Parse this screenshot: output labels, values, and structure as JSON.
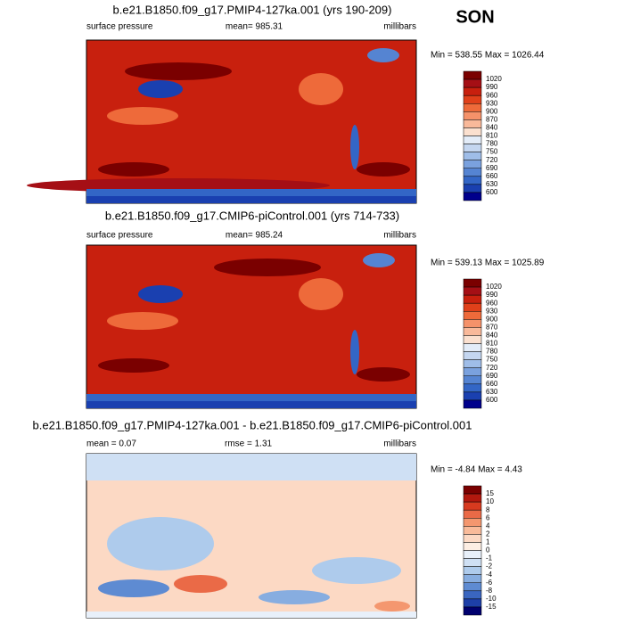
{
  "season": "SON",
  "panels": [
    {
      "title": "b.e21.B1850.f09_g17.PMIP4-127ka.001 (yrs 190-209)",
      "left": "surface pressure",
      "center": "mean= 985.31",
      "right": "millibars",
      "minmax": "Min = 538.55 Max = 1026.44",
      "colorbar": {
        "labels": [
          1020,
          990,
          960,
          930,
          900,
          870,
          840,
          810,
          780,
          750,
          720,
          690,
          660,
          630,
          600
        ],
        "colors": [
          "#7a0000",
          "#a50f15",
          "#c8200e",
          "#e0401a",
          "#ee6a3a",
          "#f5926a",
          "#f9b99a",
          "#fbe0cf",
          "#e3ecf8",
          "#c4d6f0",
          "#9fbde8",
          "#7aa1de",
          "#5584d2",
          "#3366c6",
          "#1a40b0",
          "#00008c"
        ]
      }
    },
    {
      "title": "b.e21.B1850.f09_g17.CMIP6-piControl.001 (yrs 714-733)",
      "left": "surface pressure",
      "center": "mean= 985.24",
      "right": "millibars",
      "minmax": "Min = 539.13 Max = 1025.89",
      "colorbar": {
        "labels": [
          1020,
          990,
          960,
          930,
          900,
          870,
          840,
          810,
          780,
          750,
          720,
          690,
          660,
          630,
          600
        ],
        "colors": [
          "#7a0000",
          "#a50f15",
          "#c8200e",
          "#e0401a",
          "#ee6a3a",
          "#f5926a",
          "#f9b99a",
          "#fbe0cf",
          "#e3ecf8",
          "#c4d6f0",
          "#9fbde8",
          "#7aa1de",
          "#5584d2",
          "#3366c6",
          "#1a40b0",
          "#00008c"
        ]
      }
    },
    {
      "title": "b.e21.B1850.f09_g17.PMIP4-127ka.001 - b.e21.B1850.f09_g17.CMIP6-piControl.001",
      "left": "mean =  0.07",
      "center": "rmse =  1.31",
      "right": "millibars",
      "minmax": "Min =  -4.84 Max =   4.43",
      "colorbar": {
        "labels": [
          15,
          10,
          8,
          6,
          4,
          2,
          1,
          0,
          -1,
          -2,
          -4,
          -6,
          -8,
          -10,
          -15
        ],
        "colors": [
          "#7a0000",
          "#b2180e",
          "#d73a1f",
          "#ea6a47",
          "#f4976f",
          "#f9bb9a",
          "#fcd9c4",
          "#fdeee3",
          "#e8f0fa",
          "#cfe0f4",
          "#aecbec",
          "#87ade0",
          "#5e8bd2",
          "#3a66c0",
          "#1d3fa8",
          "#00006e"
        ]
      }
    }
  ]
}
